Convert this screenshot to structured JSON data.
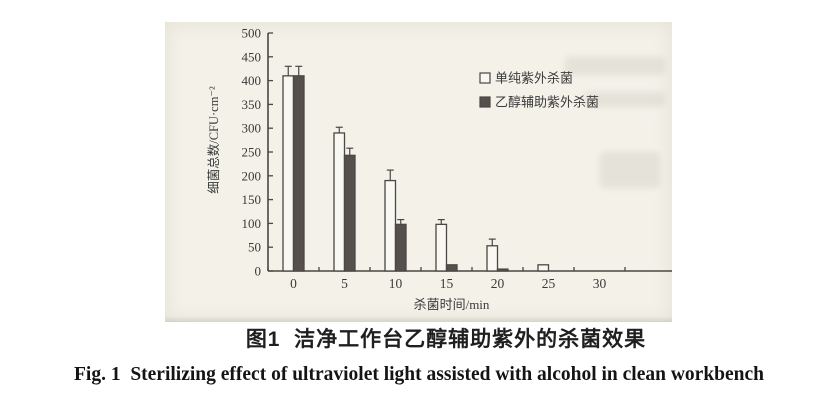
{
  "paper": {
    "caption_zh": "图1  洁净工作台乙醇辅助紫外的杀菌效果",
    "caption_en": "Fig. 1  Sterilizing effect of ultraviolet light assisted with alcohol in clean workbench"
  },
  "chart_data": {
    "type": "bar",
    "title": "",
    "categories": [
      "0",
      "5",
      "10",
      "15",
      "20",
      "25",
      "30"
    ],
    "xlabel": "杀菌时间/min",
    "ylabel": "细菌总数/CFU·cm⁻²",
    "ylim": [
      0,
      500
    ],
    "ytick_step": 50,
    "yticks": [
      "0",
      "50",
      "100",
      "150",
      "200",
      "250",
      "300",
      "350",
      "400",
      "450",
      "500"
    ],
    "grid": false,
    "legend_position": "upper right",
    "series": [
      {
        "name": "单纯紫外杀菌",
        "style": "open",
        "values": [
          410,
          290,
          190,
          98,
          53,
          13,
          0
        ],
        "errors": [
          20,
          12,
          22,
          10,
          14,
          0,
          0
        ]
      },
      {
        "name": "乙醇辅助紫外杀菌",
        "style": "filled",
        "values": [
          410,
          243,
          98,
          13,
          4,
          0,
          0
        ],
        "errors": [
          20,
          15,
          10,
          0,
          0,
          0,
          0
        ]
      }
    ]
  },
  "colors": {
    "paper_bg": "#f3f1e8",
    "axis_ink": "#4a4744",
    "bar_open_fill": "#f8f7f1",
    "bar_filled_fill": "#55504b",
    "label_ink": "#3a3a3a"
  }
}
